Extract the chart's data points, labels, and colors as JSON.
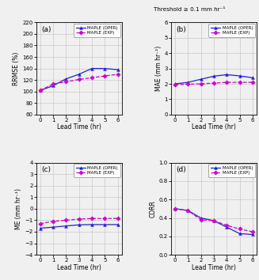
{
  "x": [
    0,
    1,
    2,
    3,
    4,
    5,
    6
  ],
  "rrmse_oper": [
    102,
    110,
    122,
    130,
    140,
    140,
    138
  ],
  "rrmse_exp": [
    102,
    113,
    117,
    121,
    124,
    127,
    130
  ],
  "mae_oper": [
    2.0,
    2.1,
    2.3,
    2.5,
    2.6,
    2.52,
    2.4
  ],
  "mae_exp": [
    1.95,
    1.98,
    2.0,
    2.05,
    2.1,
    2.1,
    2.1
  ],
  "me_oper": [
    -1.7,
    -1.6,
    -1.5,
    -1.4,
    -1.38,
    -1.38,
    -1.38
  ],
  "me_exp": [
    -1.3,
    -1.1,
    -1.0,
    -0.9,
    -0.85,
    -0.85,
    -0.85
  ],
  "corr_oper": [
    0.5,
    0.48,
    0.4,
    0.37,
    0.3,
    0.23,
    0.22
  ],
  "corr_exp": [
    0.5,
    0.48,
    0.38,
    0.37,
    0.32,
    0.28,
    0.25
  ],
  "color_oper": "#2020CC",
  "color_exp": "#CC00CC",
  "title_text": "Threshold ≥ 0.1 mm hr⁻¹",
  "label_oper": "MAPLE (OPER)",
  "label_exp": "MAPLE (EXP)",
  "xlabel": "Lead Time (hr)",
  "ylabel_a": "RRMSE (%)",
  "ylabel_b": "MAE (mm hr⁻¹)",
  "ylabel_c": "ME (mm hr⁻¹)",
  "ylabel_d": "CORR",
  "panel_a": "(a)",
  "panel_b": "(b)",
  "panel_c": "(c)",
  "panel_d": "(d)",
  "ylim_a": [
    60,
    220
  ],
  "ylim_b": [
    0,
    6
  ],
  "ylim_c": [
    -4,
    4
  ],
  "ylim_d": [
    0.0,
    1.0
  ],
  "yticks_a": [
    60,
    80,
    100,
    120,
    140,
    160,
    180,
    200,
    220
  ],
  "yticks_b": [
    0,
    1,
    2,
    3,
    4,
    5,
    6
  ],
  "yticks_c": [
    -4,
    -3,
    -2,
    -1,
    0,
    1,
    2,
    3,
    4
  ],
  "yticks_d": [
    0.0,
    0.2,
    0.4,
    0.6,
    0.8,
    1.0
  ],
  "bg_color": "#F0F0F0"
}
